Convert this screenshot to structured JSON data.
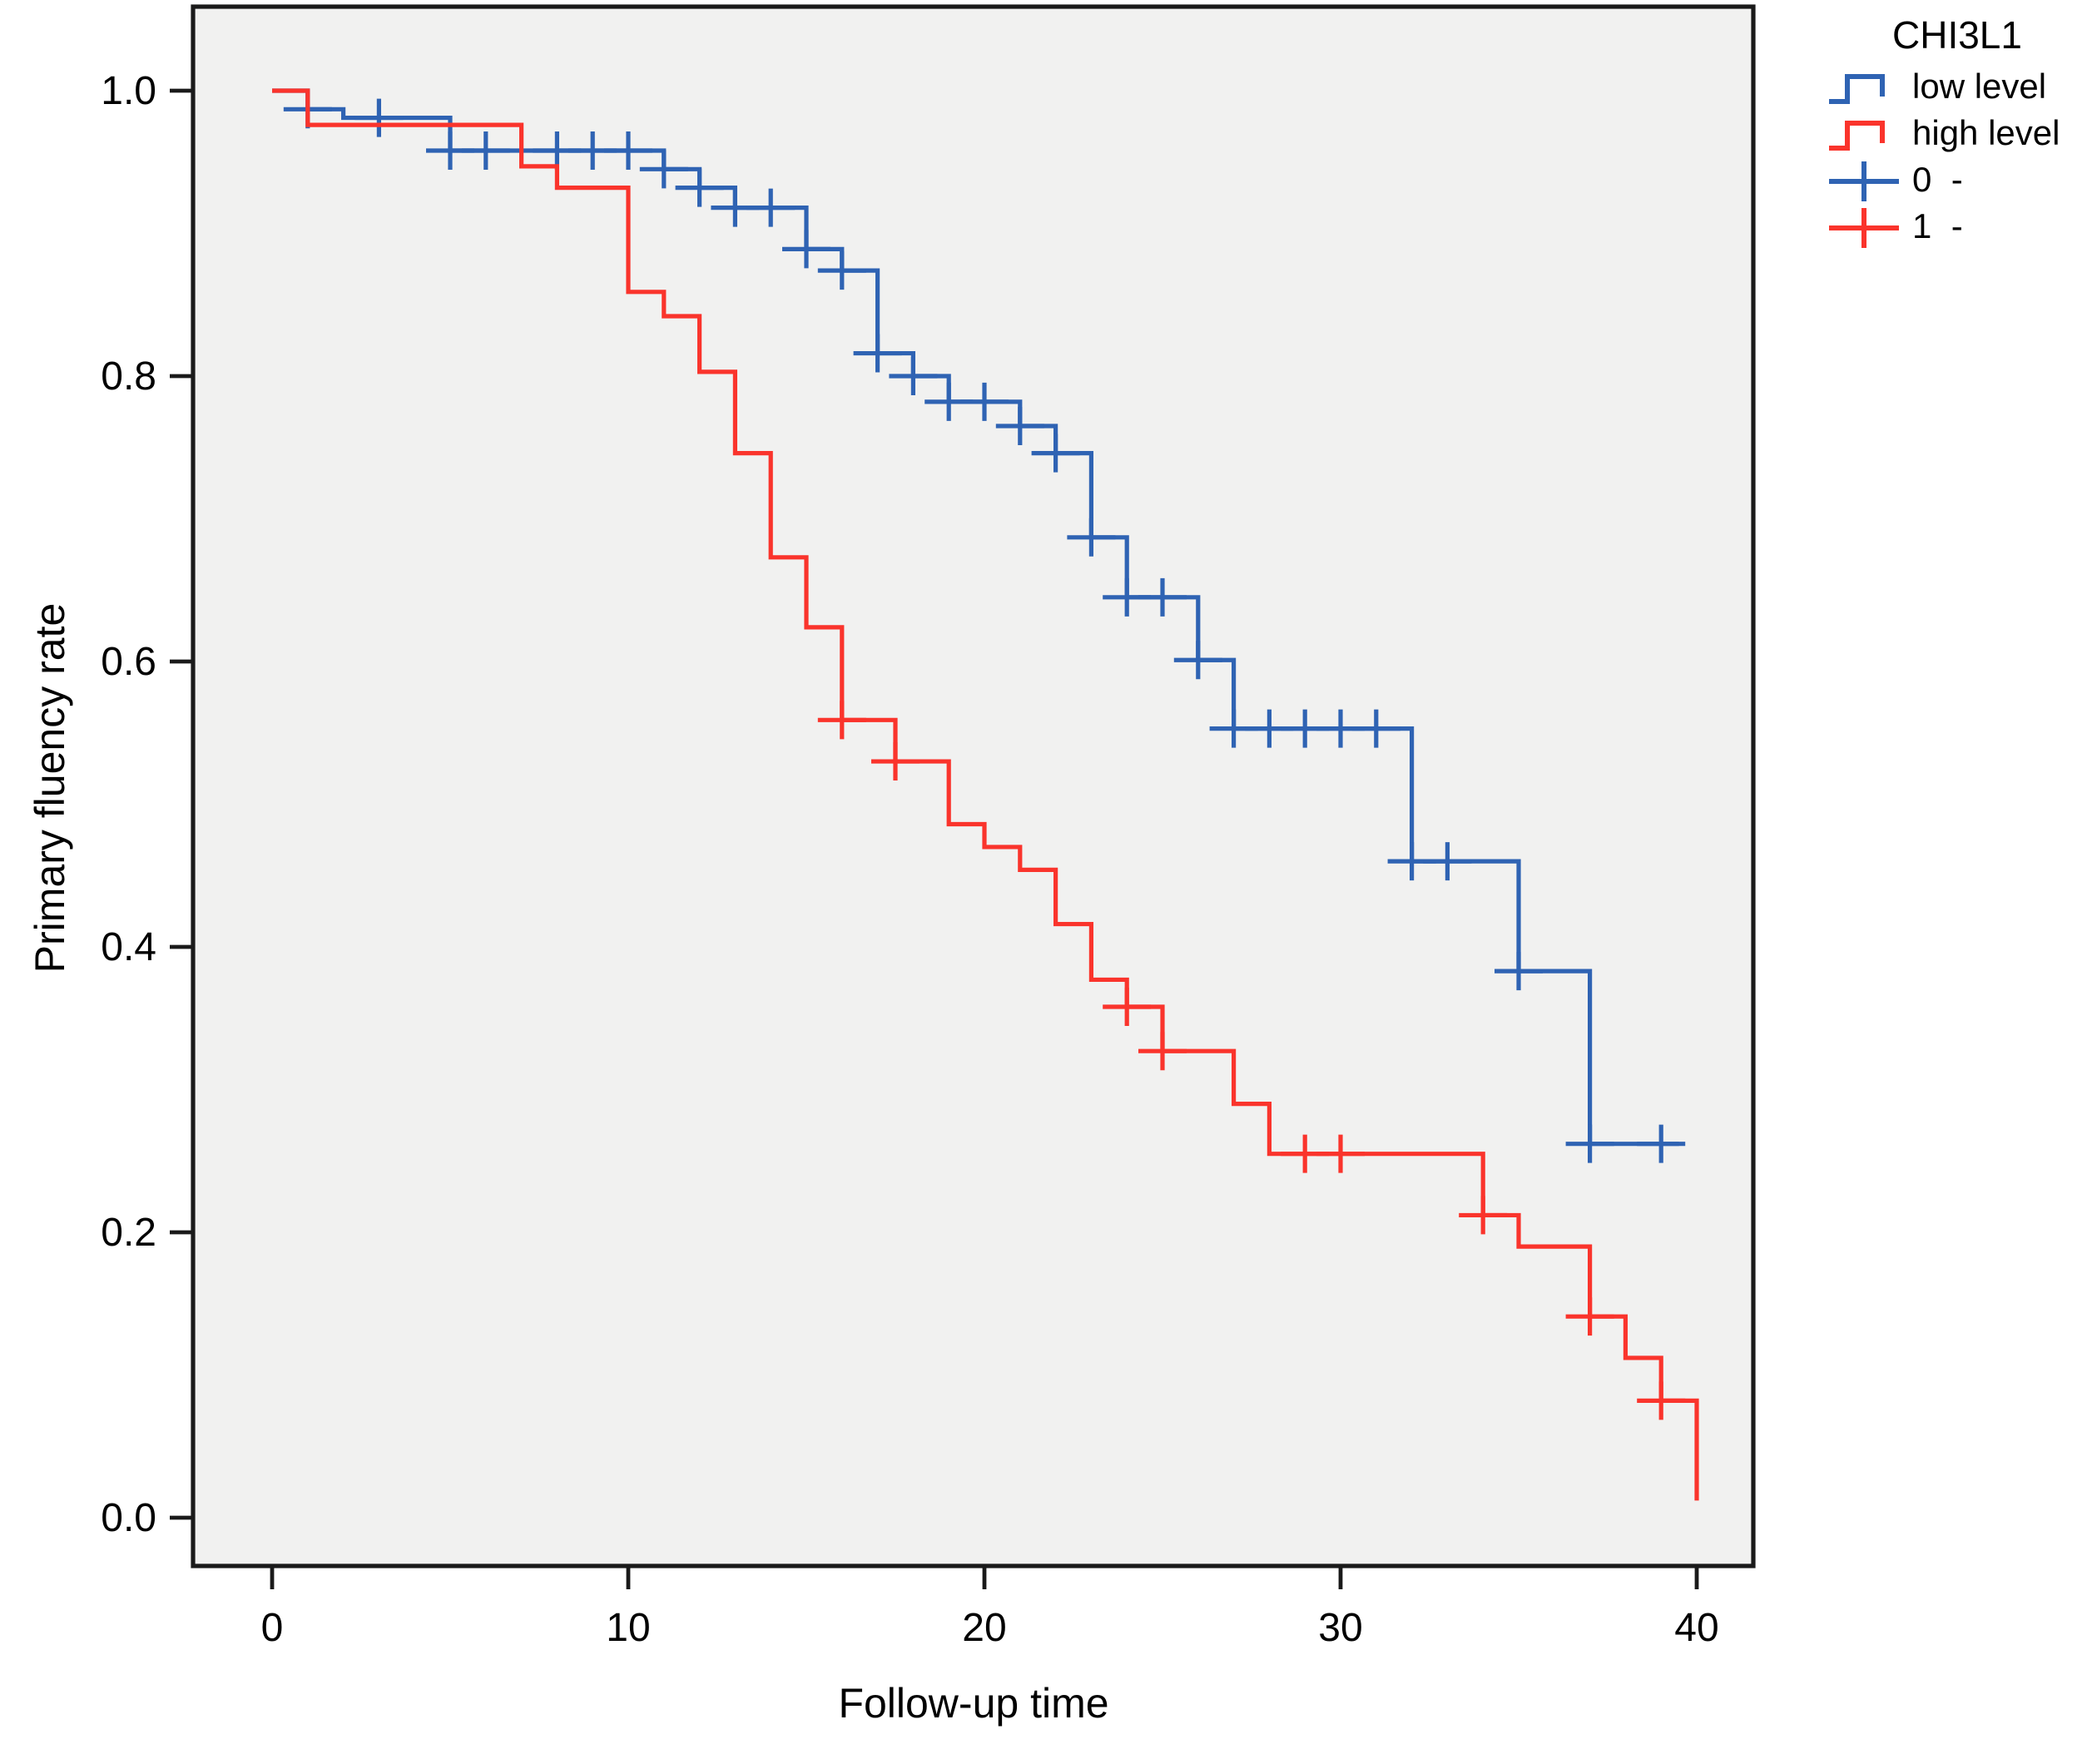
{
  "figure": {
    "plot_bg": "#f1f1f0",
    "frame_color": "#1a1a1a",
    "tick_color": "#1a1a1a",
    "text_color": "#000000"
  },
  "legend": {
    "title": "CHI3L1",
    "entries": [
      {
        "label": "low level",
        "type": "step-line",
        "color": "#2f63b3"
      },
      {
        "label": "high level",
        "type": "step-line",
        "color": "#fa342c"
      },
      {
        "label": "0  -",
        "type": "censor-mark",
        "color": "#2f63b3"
      },
      {
        "label": "1  -",
        "type": "censor-mark",
        "color": "#fa342c"
      }
    ]
  },
  "chart_data": {
    "type": "line",
    "subtype": "kaplan-meier-step",
    "title": "",
    "xlabel": "Follow-up time",
    "ylabel": "Primary fluency rate",
    "xlim": [
      -2.2,
      41.6
    ],
    "ylim": [
      -0.034,
      1.06
    ],
    "xticks": [
      "0",
      "10",
      "20",
      "30",
      "40"
    ],
    "xtick_values": [
      0,
      10,
      20,
      30,
      40
    ],
    "yticks": [
      "0.0",
      "0.2",
      "0.4",
      "0.6",
      "0.8",
      "1.0"
    ],
    "ytick_values": [
      0.0,
      0.2,
      0.4,
      0.6,
      0.8,
      1.0
    ],
    "grid": false,
    "legend_position": "right-top",
    "series": [
      {
        "id": "low-level",
        "name": "low level",
        "color": "#2f63b3",
        "steps": [
          [
            0,
            1.0
          ],
          [
            1,
            0.987
          ],
          [
            2,
            0.981
          ],
          [
            5,
            0.958
          ],
          [
            11,
            0.945
          ],
          [
            12,
            0.932
          ],
          [
            13,
            0.918
          ],
          [
            15,
            0.889
          ],
          [
            16,
            0.874
          ],
          [
            17,
            0.816
          ],
          [
            18,
            0.8
          ],
          [
            19,
            0.782
          ],
          [
            21,
            0.765
          ],
          [
            22,
            0.746
          ],
          [
            23,
            0.687
          ],
          [
            24,
            0.645
          ],
          [
            26,
            0.601
          ],
          [
            27,
            0.553
          ],
          [
            32,
            0.46
          ],
          [
            35,
            0.383
          ],
          [
            37,
            0.262
          ]
        ],
        "end_t": 39.5,
        "censors": [
          [
            1,
            0.987
          ],
          [
            3,
            0.981
          ],
          [
            5,
            0.958
          ],
          [
            6,
            0.958
          ],
          [
            8,
            0.958
          ],
          [
            9,
            0.958
          ],
          [
            10,
            0.958
          ],
          [
            11,
            0.945
          ],
          [
            12,
            0.932
          ],
          [
            13,
            0.918
          ],
          [
            14,
            0.918
          ],
          [
            15,
            0.889
          ],
          [
            16,
            0.874
          ],
          [
            17,
            0.816
          ],
          [
            18,
            0.8
          ],
          [
            19,
            0.782
          ],
          [
            20,
            0.782
          ],
          [
            21,
            0.765
          ],
          [
            22,
            0.746
          ],
          [
            23,
            0.687
          ],
          [
            24,
            0.645
          ],
          [
            25,
            0.645
          ],
          [
            26,
            0.601
          ],
          [
            27,
            0.553
          ],
          [
            28,
            0.553
          ],
          [
            29,
            0.553
          ],
          [
            30,
            0.553
          ],
          [
            31,
            0.553
          ],
          [
            32,
            0.46
          ],
          [
            33,
            0.46
          ],
          [
            35,
            0.383
          ],
          [
            37,
            0.262
          ],
          [
            39,
            0.262
          ]
        ]
      },
      {
        "id": "high-level",
        "name": "high level",
        "color": "#fa342c",
        "steps": [
          [
            0,
            1.0
          ],
          [
            1,
            0.976
          ],
          [
            7,
            0.947
          ],
          [
            8,
            0.932
          ],
          [
            10,
            0.859
          ],
          [
            11,
            0.842
          ],
          [
            12,
            0.803
          ],
          [
            13,
            0.746
          ],
          [
            14,
            0.673
          ],
          [
            15,
            0.624
          ],
          [
            16,
            0.559
          ],
          [
            17.5,
            0.53
          ],
          [
            19,
            0.486
          ],
          [
            20,
            0.47
          ],
          [
            21,
            0.454
          ],
          [
            22,
            0.416
          ],
          [
            23,
            0.377
          ],
          [
            24,
            0.358
          ],
          [
            25,
            0.327
          ],
          [
            27,
            0.29
          ],
          [
            28,
            0.255
          ],
          [
            34,
            0.212
          ],
          [
            35,
            0.19
          ],
          [
            37,
            0.141
          ],
          [
            38,
            0.112
          ],
          [
            39,
            0.082
          ],
          [
            40,
            0.012
          ]
        ],
        "end_t": 40,
        "censors": [
          [
            16,
            0.559
          ],
          [
            17.5,
            0.53
          ],
          [
            24,
            0.358
          ],
          [
            25,
            0.327
          ],
          [
            29,
            0.255
          ],
          [
            30,
            0.255
          ],
          [
            34,
            0.212
          ],
          [
            37,
            0.141
          ],
          [
            39,
            0.082
          ]
        ]
      }
    ]
  }
}
